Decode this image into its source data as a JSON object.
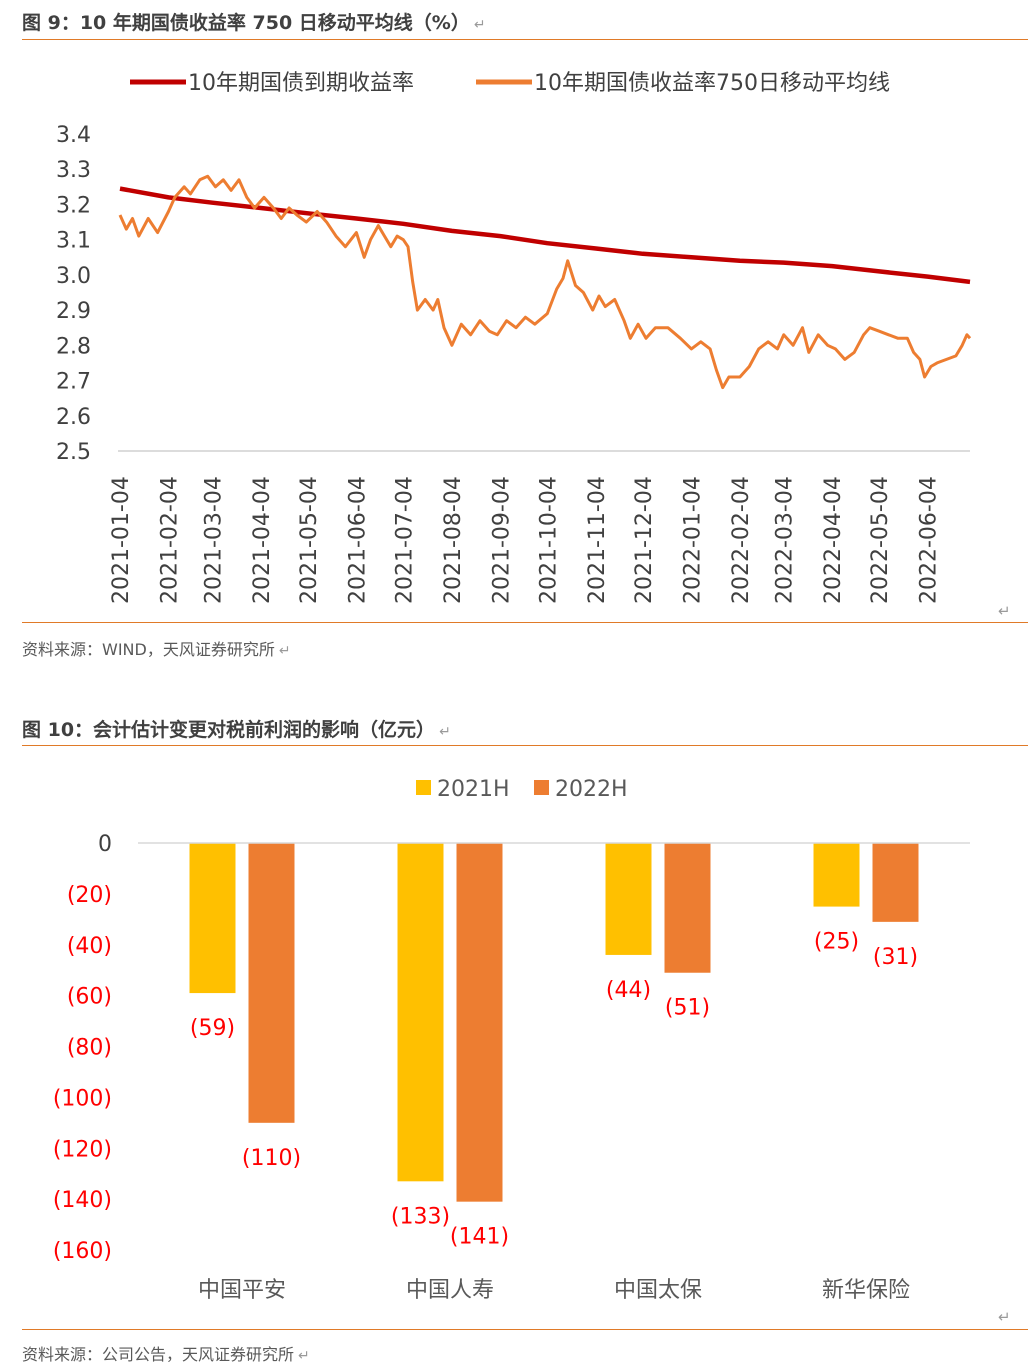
{
  "figure1": {
    "title": "图 9：10 年期国债收益率 750 日移动平均线（%）",
    "source": "资料来源：WIND，天风证券研究所",
    "colors": {
      "line1": "#c00000",
      "line2": "#ed7d31"
    },
    "chart_data": {
      "type": "line",
      "title": "",
      "legend_position": "top",
      "series": [
        {
          "name": "10年期国债到期收益率"
        },
        {
          "name": "10年期国债收益率750日移动平均线"
        }
      ],
      "x_ticks": [
        "2021-01-04",
        "2021-02-04",
        "2021-03-04",
        "2021-04-04",
        "2021-05-04",
        "2021-06-04",
        "2021-07-04",
        "2021-08-04",
        "2021-09-04",
        "2021-10-04",
        "2021-11-04",
        "2021-12-04",
        "2022-01-04",
        "2022-02-04",
        "2022-03-04",
        "2022-04-04",
        "2022-05-04",
        "2022-06-04"
      ],
      "y_ticks": [
        "3.4",
        "3.3",
        "3.2",
        "3.1",
        "3.0",
        "2.9",
        "2.8",
        "2.7",
        "2.6",
        "2.5"
      ],
      "ylim": [
        2.5,
        3.4
      ],
      "xlim": [
        "2021-01-04",
        "2022-07-01"
      ],
      "ma_points": [
        [
          "2021-01-04",
          3.245
        ],
        [
          "2021-02-04",
          3.22
        ],
        [
          "2021-03-04",
          3.205
        ],
        [
          "2021-04-04",
          3.19
        ],
        [
          "2021-05-04",
          3.175
        ],
        [
          "2021-06-04",
          3.16
        ],
        [
          "2021-07-04",
          3.145
        ],
        [
          "2021-08-04",
          3.125
        ],
        [
          "2021-09-04",
          3.11
        ],
        [
          "2021-10-04",
          3.09
        ],
        [
          "2021-11-04",
          3.075
        ],
        [
          "2021-12-04",
          3.06
        ],
        [
          "2022-01-04",
          3.05
        ],
        [
          "2022-02-04",
          3.04
        ],
        [
          "2022-03-04",
          3.035
        ],
        [
          "2022-04-04",
          3.025
        ],
        [
          "2022-05-04",
          3.01
        ],
        [
          "2022-06-04",
          2.995
        ],
        [
          "2022-07-01",
          2.98
        ]
      ],
      "yield_points": [
        [
          "2021-01-04",
          3.17
        ],
        [
          "2021-01-08",
          3.13
        ],
        [
          "2021-01-12",
          3.16
        ],
        [
          "2021-01-16",
          3.11
        ],
        [
          "2021-01-22",
          3.16
        ],
        [
          "2021-01-28",
          3.12
        ],
        [
          "2021-02-04",
          3.18
        ],
        [
          "2021-02-08",
          3.22
        ],
        [
          "2021-02-14",
          3.25
        ],
        [
          "2021-02-18",
          3.23
        ],
        [
          "2021-02-24",
          3.27
        ],
        [
          "2021-03-01",
          3.28
        ],
        [
          "2021-03-06",
          3.25
        ],
        [
          "2021-03-11",
          3.27
        ],
        [
          "2021-03-16",
          3.24
        ],
        [
          "2021-03-21",
          3.27
        ],
        [
          "2021-03-26",
          3.22
        ],
        [
          "2021-03-31",
          3.19
        ],
        [
          "2021-04-06",
          3.22
        ],
        [
          "2021-04-12",
          3.19
        ],
        [
          "2021-04-17",
          3.16
        ],
        [
          "2021-04-22",
          3.19
        ],
        [
          "2021-04-27",
          3.17
        ],
        [
          "2021-05-03",
          3.15
        ],
        [
          "2021-05-10",
          3.18
        ],
        [
          "2021-05-16",
          3.15
        ],
        [
          "2021-05-22",
          3.11
        ],
        [
          "2021-05-28",
          3.08
        ],
        [
          "2021-06-04",
          3.12
        ],
        [
          "2021-06-09",
          3.05
        ],
        [
          "2021-06-13",
          3.1
        ],
        [
          "2021-06-18",
          3.14
        ],
        [
          "2021-06-22",
          3.11
        ],
        [
          "2021-06-26",
          3.08
        ],
        [
          "2021-06-30",
          3.11
        ],
        [
          "2021-07-04",
          3.1
        ],
        [
          "2021-07-07",
          3.08
        ],
        [
          "2021-07-10",
          2.98
        ],
        [
          "2021-07-13",
          2.9
        ],
        [
          "2021-07-18",
          2.93
        ],
        [
          "2021-07-23",
          2.9
        ],
        [
          "2021-07-26",
          2.93
        ],
        [
          "2021-07-30",
          2.85
        ],
        [
          "2021-08-04",
          2.8
        ],
        [
          "2021-08-10",
          2.86
        ],
        [
          "2021-08-16",
          2.83
        ],
        [
          "2021-08-22",
          2.87
        ],
        [
          "2021-08-28",
          2.84
        ],
        [
          "2021-09-02",
          2.83
        ],
        [
          "2021-09-08",
          2.87
        ],
        [
          "2021-09-14",
          2.85
        ],
        [
          "2021-09-20",
          2.88
        ],
        [
          "2021-09-26",
          2.86
        ],
        [
          "2021-10-04",
          2.89
        ],
        [
          "2021-10-10",
          2.96
        ],
        [
          "2021-10-14",
          2.99
        ],
        [
          "2021-10-17",
          3.04
        ],
        [
          "2021-10-22",
          2.97
        ],
        [
          "2021-10-27",
          2.95
        ],
        [
          "2021-11-02",
          2.9
        ],
        [
          "2021-11-06",
          2.94
        ],
        [
          "2021-11-10",
          2.91
        ],
        [
          "2021-11-16",
          2.93
        ],
        [
          "2021-11-22",
          2.87
        ],
        [
          "2021-11-26",
          2.82
        ],
        [
          "2021-12-01",
          2.86
        ],
        [
          "2021-12-06",
          2.82
        ],
        [
          "2021-12-12",
          2.85
        ],
        [
          "2021-12-20",
          2.85
        ],
        [
          "2021-12-28",
          2.82
        ],
        [
          "2022-01-04",
          2.79
        ],
        [
          "2022-01-10",
          2.81
        ],
        [
          "2022-01-16",
          2.79
        ],
        [
          "2022-01-20",
          2.73
        ],
        [
          "2022-01-24",
          2.68
        ],
        [
          "2022-01-28",
          2.71
        ],
        [
          "2022-02-04",
          2.71
        ],
        [
          "2022-02-10",
          2.74
        ],
        [
          "2022-02-16",
          2.79
        ],
        [
          "2022-02-22",
          2.81
        ],
        [
          "2022-02-28",
          2.79
        ],
        [
          "2022-03-04",
          2.83
        ],
        [
          "2022-03-10",
          2.8
        ],
        [
          "2022-03-16",
          2.85
        ],
        [
          "2022-03-20",
          2.78
        ],
        [
          "2022-03-26",
          2.83
        ],
        [
          "2022-04-01",
          2.8
        ],
        [
          "2022-04-06",
          2.79
        ],
        [
          "2022-04-12",
          2.76
        ],
        [
          "2022-04-18",
          2.78
        ],
        [
          "2022-04-24",
          2.83
        ],
        [
          "2022-04-28",
          2.85
        ],
        [
          "2022-05-04",
          2.84
        ],
        [
          "2022-05-10",
          2.83
        ],
        [
          "2022-05-16",
          2.82
        ],
        [
          "2022-05-22",
          2.82
        ],
        [
          "2022-05-26",
          2.78
        ],
        [
          "2022-05-30",
          2.76
        ],
        [
          "2022-06-02",
          2.71
        ],
        [
          "2022-06-06",
          2.74
        ],
        [
          "2022-06-10",
          2.75
        ],
        [
          "2022-06-16",
          2.76
        ],
        [
          "2022-06-22",
          2.77
        ],
        [
          "2022-06-26",
          2.8
        ],
        [
          "2022-06-29",
          2.83
        ],
        [
          "2022-07-01",
          2.82
        ]
      ]
    }
  },
  "figure2": {
    "title": "图 10：会计估计变更对税前利润的影响（亿元）",
    "source": "资料来源：公司公告，天风证券研究所",
    "colors": {
      "s2021": "#ffc000",
      "s2022": "#ed7d31",
      "labels": "#ff0000"
    },
    "chart_data": {
      "type": "bar",
      "title": "",
      "legend_position": "top",
      "categories": [
        "中国平安",
        "中国人寿",
        "中国太保",
        "新华保险"
      ],
      "series": [
        {
          "name": "2021H",
          "values": [
            -59,
            -133,
            -44,
            -25
          ],
          "labels": [
            "(59)",
            "(133)",
            "(44)",
            "(25)"
          ]
        },
        {
          "name": "2022H",
          "values": [
            -110,
            -141,
            -51,
            -31
          ],
          "labels": [
            "(110)",
            "(141)",
            "(51)",
            "(31)"
          ]
        }
      ],
      "y_ticks": [
        {
          "value": 0,
          "label": "0"
        },
        {
          "value": -20,
          "label": "(20)"
        },
        {
          "value": -40,
          "label": "(40)"
        },
        {
          "value": -60,
          "label": "(60)"
        },
        {
          "value": -80,
          "label": "(80)"
        },
        {
          "value": -100,
          "label": "(100)"
        },
        {
          "value": -120,
          "label": "(120)"
        },
        {
          "value": -140,
          "label": "(140)"
        },
        {
          "value": -160,
          "label": "(160)"
        }
      ],
      "ylim": [
        -160,
        0
      ]
    }
  }
}
